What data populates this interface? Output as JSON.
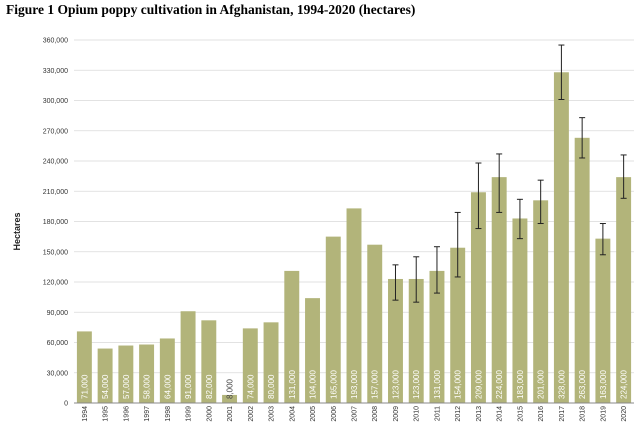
{
  "title": "Figure 1 Opium poppy cultivation in Afghanistan, 1994-2020 (hectares)",
  "chart_data": {
    "type": "bar",
    "title": "Figure 1 Opium poppy cultivation in Afghanistan, 1994-2020 (hectares)",
    "xlabel": "",
    "ylabel": "Hectares",
    "ylim": [
      0,
      360000
    ],
    "yticks": [
      0,
      30000,
      60000,
      90000,
      120000,
      150000,
      180000,
      210000,
      240000,
      270000,
      300000,
      330000,
      360000
    ],
    "ytick_labels": [
      "0",
      "30,000",
      "60,000",
      "90,000",
      "120,000",
      "150,000",
      "180,000",
      "210,000",
      "240,000",
      "270,000",
      "300,000",
      "330,000",
      "360,000"
    ],
    "grid": true,
    "bar_color": "#b2b47a",
    "categories": [
      "1994",
      "1995",
      "1996",
      "1997",
      "1998",
      "1999",
      "2000",
      "2001",
      "2002",
      "2003",
      "2004",
      "2005",
      "2006",
      "2007",
      "2008",
      "2009",
      "2010",
      "2011",
      "2012",
      "2013",
      "2014",
      "2015",
      "2016",
      "2017",
      "2018",
      "2019",
      "2020"
    ],
    "values": [
      71000,
      54000,
      57000,
      58000,
      64000,
      91000,
      82000,
      8000,
      74000,
      80000,
      131000,
      104000,
      165000,
      193000,
      157000,
      123000,
      123000,
      131000,
      154000,
      209000,
      224000,
      183000,
      201000,
      328000,
      263000,
      163000,
      224000
    ],
    "data_labels": [
      "71,000",
      "54,000",
      "57,000",
      "58,000",
      "64,000",
      "91,000",
      "82,000",
      "8,000",
      "74,000",
      "80,000",
      "131,000",
      "104,000",
      "165,000",
      "193,000",
      "157,000",
      "123,000",
      "123,000",
      "131,000",
      "154,000",
      "209,000",
      "224,000",
      "183,000",
      "201,000",
      "328,000",
      "263,000",
      "163,000",
      "224,000"
    ],
    "error_bars": {
      "2009": [
        102000,
        137000
      ],
      "2010": [
        100000,
        145000
      ],
      "2011": [
        109000,
        155000
      ],
      "2012": [
        125000,
        189000
      ],
      "2013": [
        173000,
        238000
      ],
      "2014": [
        189000,
        247000
      ],
      "2015": [
        163000,
        202000
      ],
      "2016": [
        178000,
        221000
      ],
      "2017": [
        301000,
        355000
      ],
      "2018": [
        243000,
        283000
      ],
      "2019": [
        147000,
        178000
      ],
      "2020": [
        203000,
        246000
      ]
    }
  }
}
